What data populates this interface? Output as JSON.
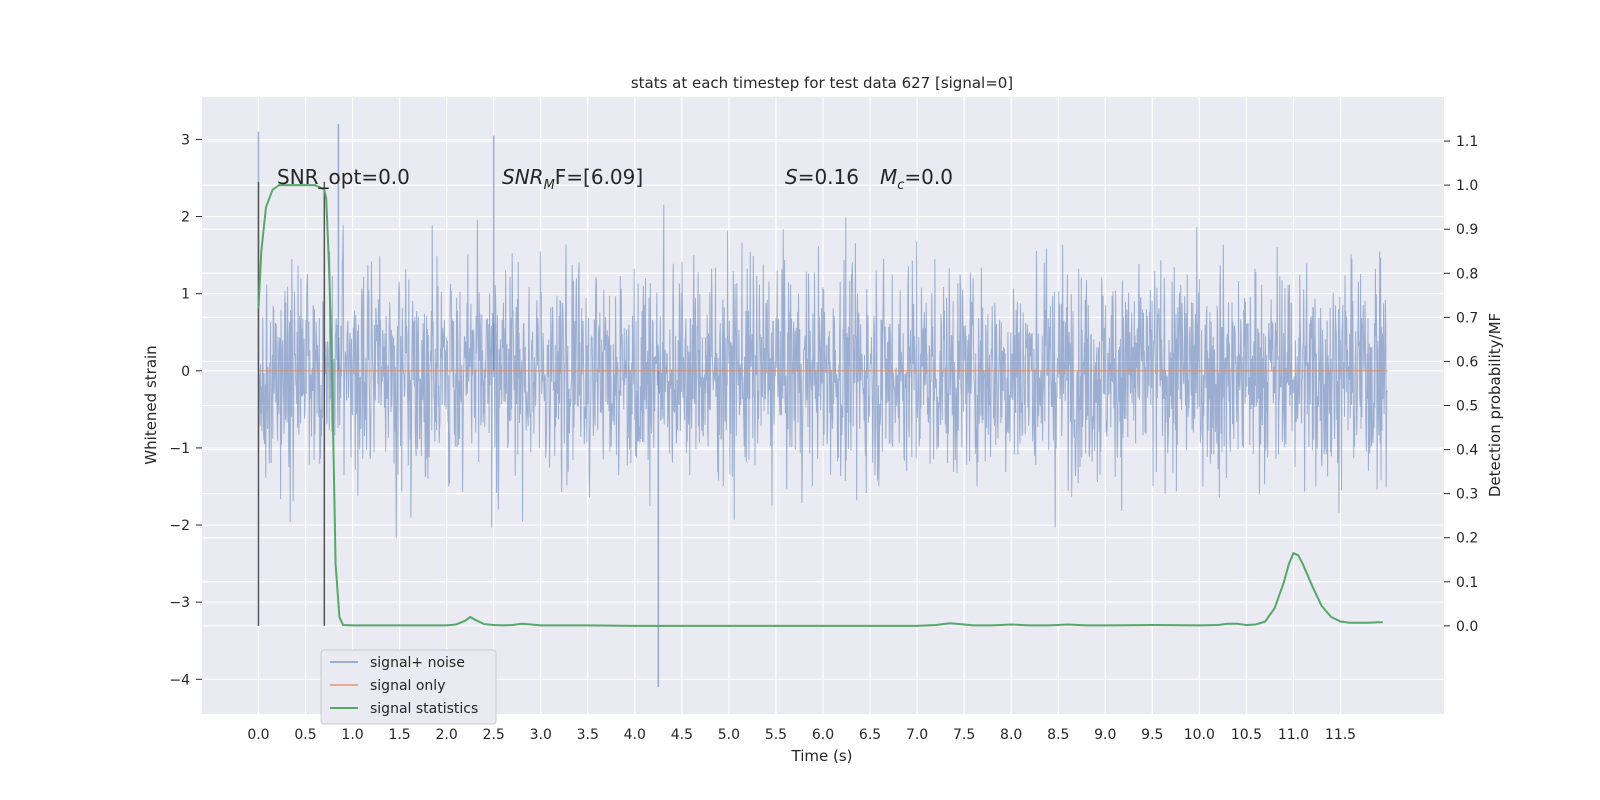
{
  "chart_data": {
    "type": "line",
    "title": "stats at each timestep for test data 627 [signal=0]",
    "xlabel": "Time (s)",
    "ylabel_left": "Whitened strain",
    "ylabel_right": "Detection probability/MF",
    "xlim": [
      -0.6,
      12.6
    ],
    "ylim_left": [
      -4.45,
      3.55
    ],
    "ylim_right": [
      -0.2,
      1.2
    ],
    "x_ticks": [
      "0.0",
      "0.5",
      "1.0",
      "1.5",
      "2.0",
      "2.5",
      "3.0",
      "3.5",
      "4.0",
      "4.5",
      "5.0",
      "5.5",
      "6.0",
      "6.5",
      "7.0",
      "7.5",
      "8.0",
      "8.5",
      "9.0",
      "9.5",
      "10.0",
      "10.5",
      "11.0",
      "11.5"
    ],
    "y_left_ticks": [
      "3",
      "2",
      "1",
      "0",
      "−1",
      "−2",
      "−3",
      "−4"
    ],
    "y_right_ticks": [
      "1.1",
      "1.0",
      "0.9",
      "0.8",
      "0.7",
      "0.6",
      "0.5",
      "0.4",
      "0.3",
      "0.2",
      "0.1",
      "0.0"
    ],
    "grid": true,
    "legend_position": "lower-left",
    "annotations": {
      "snr_opt": "SNR_opt=0.0",
      "snr_mf_a": "SNR",
      "snr_mf_sub": "M",
      "snr_mf_b": "F=[6.09]",
      "s_label": "S",
      "s_value": "=0.16",
      "mc_label": "M",
      "mc_sub": "c",
      "mc_value": "=0.0"
    },
    "series": [
      {
        "name": "signal+ noise",
        "color": "#4c72b0",
        "description_range": [
          -4.1,
          3.2
        ],
        "x_range": [
          0.0,
          12.0
        ],
        "sample_peaks": [
          {
            "x": 0.0,
            "y": 3.1
          },
          {
            "x": 0.85,
            "y": 3.2
          },
          {
            "x": 2.5,
            "y": 3.05
          },
          {
            "x": 4.25,
            "y": -4.1
          }
        ]
      },
      {
        "name": "signal only",
        "color": "#dd8452",
        "x": [
          0.0,
          12.0
        ],
        "y": [
          0.0,
          0.0
        ]
      },
      {
        "name": "signal statistics",
        "color": "#55a868",
        "x": [
          0.0,
          0.03,
          0.08,
          0.15,
          0.22,
          0.3,
          0.4,
          0.5,
          0.6,
          0.65,
          0.7,
          0.72,
          0.75,
          0.78,
          0.82,
          0.86,
          0.9,
          1.0,
          1.5,
          2.0,
          2.1,
          2.2,
          2.25,
          2.3,
          2.4,
          2.5,
          2.6,
          2.7,
          2.8,
          2.9,
          3.0,
          3.5,
          4.0,
          5.0,
          6.0,
          7.0,
          7.2,
          7.35,
          7.5,
          7.6,
          7.8,
          8.0,
          8.2,
          8.4,
          8.6,
          8.8,
          9.0,
          9.5,
          10.0,
          10.2,
          10.3,
          10.4,
          10.5,
          10.6,
          10.7,
          10.8,
          10.9,
          10.95,
          11.0,
          11.05,
          11.1,
          11.2,
          11.3,
          11.4,
          11.5,
          11.6,
          11.7,
          11.8,
          11.9,
          11.95
        ],
        "y": [
          0.72,
          0.85,
          0.95,
          0.99,
          1.0,
          1.0,
          1.0,
          1.0,
          1.0,
          0.995,
          0.99,
          0.97,
          0.82,
          0.6,
          0.14,
          0.02,
          0.002,
          0.001,
          0.001,
          0.001,
          0.003,
          0.012,
          0.02,
          0.014,
          0.004,
          0.002,
          0.001,
          0.002,
          0.005,
          0.003,
          0.001,
          0.001,
          0.0,
          0.0,
          0.0,
          0.0,
          0.002,
          0.006,
          0.003,
          0.001,
          0.001,
          0.003,
          0.001,
          0.001,
          0.003,
          0.001,
          0.001,
          0.002,
          0.001,
          0.002,
          0.005,
          0.005,
          0.002,
          0.003,
          0.01,
          0.04,
          0.1,
          0.14,
          0.165,
          0.16,
          0.14,
          0.09,
          0.045,
          0.02,
          0.01,
          0.007,
          0.007,
          0.007,
          0.008,
          0.008
        ]
      }
    ],
    "vertical_lines": [
      {
        "x": 0.0,
        "color": "#555555"
      },
      {
        "x": 0.7,
        "color": "#555555"
      }
    ]
  },
  "colors": {
    "plot_background": "#eaeaf2",
    "grid": "#ffffff",
    "text": "#262626"
  }
}
